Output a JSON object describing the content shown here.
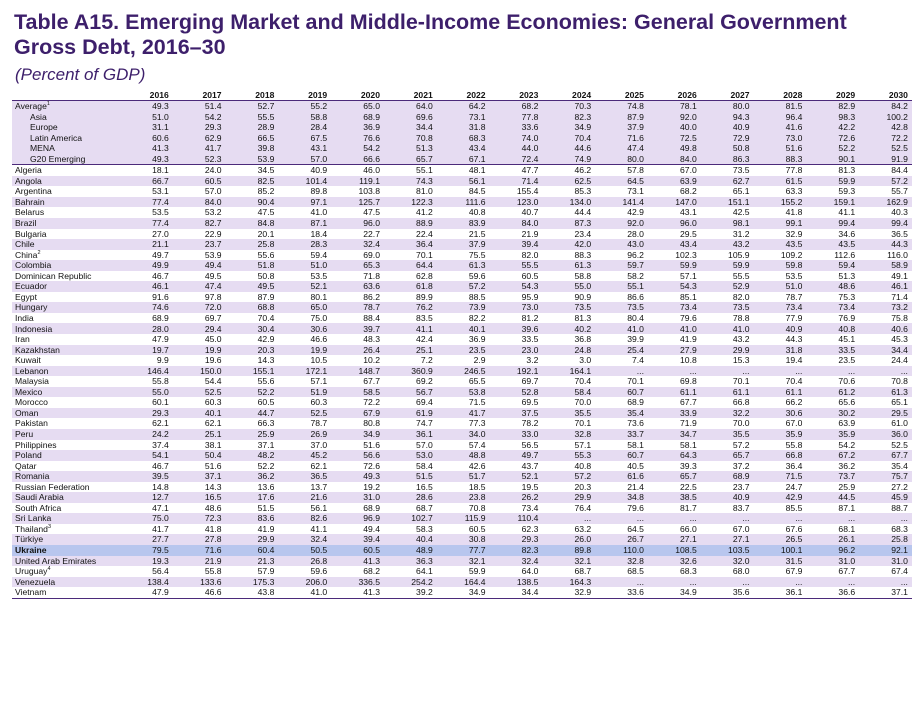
{
  "title": "Table A15. Emerging Market and Middle-Income Economies: General Government Gross Debt, 2016–30",
  "subtitle": "(Percent of GDP)",
  "table": {
    "years": [
      "2016",
      "2017",
      "2018",
      "2019",
      "2020",
      "2021",
      "2022",
      "2023",
      "2024",
      "2025",
      "2026",
      "2027",
      "2028",
      "2029",
      "2030"
    ],
    "aggregates": [
      {
        "name": "Average",
        "note": "1",
        "values": [
          "49.3",
          "51.4",
          "52.7",
          "55.2",
          "65.0",
          "64.0",
          "64.2",
          "68.2",
          "70.3",
          "74.8",
          "78.1",
          "80.0",
          "81.5",
          "82.9",
          "84.2"
        ]
      },
      {
        "name": "Asia",
        "note": "",
        "values": [
          "51.0",
          "54.2",
          "55.5",
          "58.8",
          "68.9",
          "69.6",
          "73.1",
          "77.8",
          "82.3",
          "87.9",
          "92.0",
          "94.3",
          "96.4",
          "98.3",
          "100.2"
        ]
      },
      {
        "name": "Europe",
        "note": "",
        "values": [
          "31.1",
          "29.3",
          "28.9",
          "28.4",
          "36.9",
          "34.4",
          "31.8",
          "33.6",
          "34.9",
          "37.9",
          "40.0",
          "40.9",
          "41.6",
          "42.2",
          "42.8"
        ]
      },
      {
        "name": "Latin America",
        "note": "",
        "values": [
          "60.6",
          "62.9",
          "66.5",
          "67.5",
          "76.6",
          "70.8",
          "68.3",
          "74.0",
          "70.4",
          "71.6",
          "72.5",
          "72.9",
          "73.0",
          "72.6",
          "72.2"
        ]
      },
      {
        "name": "MENA",
        "note": "",
        "values": [
          "41.3",
          "41.7",
          "39.8",
          "43.1",
          "54.2",
          "51.3",
          "43.4",
          "44.0",
          "44.6",
          "47.4",
          "49.8",
          "50.8",
          "51.6",
          "52.2",
          "52.5"
        ]
      },
      {
        "name": "G20 Emerging",
        "note": "",
        "values": [
          "49.3",
          "52.3",
          "53.9",
          "57.0",
          "66.6",
          "65.7",
          "67.1",
          "72.4",
          "74.9",
          "80.0",
          "84.0",
          "86.3",
          "88.3",
          "90.1",
          "91.9"
        ]
      }
    ],
    "countries": [
      {
        "name": "Algeria",
        "note": "",
        "values": [
          "18.1",
          "24.0",
          "34.5",
          "40.9",
          "46.0",
          "55.1",
          "48.1",
          "47.7",
          "46.2",
          "57.8",
          "67.0",
          "73.5",
          "77.8",
          "81.3",
          "84.4"
        ]
      },
      {
        "name": "Angola",
        "note": "",
        "values": [
          "66.7",
          "60.5",
          "82.5",
          "101.4",
          "119.1",
          "74.3",
          "56.1",
          "71.4",
          "62.5",
          "64.5",
          "63.9",
          "62.7",
          "61.5",
          "59.9",
          "57.2"
        ]
      },
      {
        "name": "Argentina",
        "note": "",
        "values": [
          "53.1",
          "57.0",
          "85.2",
          "89.8",
          "103.8",
          "81.0",
          "84.5",
          "155.4",
          "85.3",
          "73.1",
          "68.2",
          "65.1",
          "63.3",
          "59.3",
          "55.7"
        ]
      },
      {
        "name": "Bahrain",
        "note": "",
        "values": [
          "77.4",
          "84.0",
          "90.4",
          "97.1",
          "125.7",
          "122.3",
          "111.6",
          "123.0",
          "134.0",
          "141.4",
          "147.0",
          "151.1",
          "155.2",
          "159.1",
          "162.9"
        ]
      },
      {
        "name": "Belarus",
        "note": "",
        "values": [
          "53.5",
          "53.2",
          "47.5",
          "41.0",
          "47.5",
          "41.2",
          "40.8",
          "40.7",
          "44.4",
          "42.9",
          "43.1",
          "42.5",
          "41.8",
          "41.1",
          "40.3"
        ]
      },
      {
        "name": "Brazil",
        "note": "",
        "values": [
          "77.4",
          "82.7",
          "84.8",
          "87.1",
          "96.0",
          "88.9",
          "83.9",
          "84.0",
          "87.3",
          "92.0",
          "96.0",
          "98.1",
          "99.1",
          "99.4",
          "99.4"
        ]
      },
      {
        "name": "Bulgaria",
        "note": "",
        "values": [
          "27.0",
          "22.9",
          "20.1",
          "18.4",
          "22.7",
          "22.4",
          "21.5",
          "21.9",
          "23.4",
          "28.0",
          "29.5",
          "31.2",
          "32.9",
          "34.6",
          "36.5"
        ]
      },
      {
        "name": "Chile",
        "note": "",
        "values": [
          "21.1",
          "23.7",
          "25.8",
          "28.3",
          "32.4",
          "36.4",
          "37.9",
          "39.4",
          "42.0",
          "43.0",
          "43.4",
          "43.2",
          "43.5",
          "43.5",
          "44.3"
        ]
      },
      {
        "name": "China",
        "note": "2",
        "values": [
          "49.7",
          "53.9",
          "55.6",
          "59.4",
          "69.0",
          "70.1",
          "75.5",
          "82.0",
          "88.3",
          "96.2",
          "102.3",
          "105.9",
          "109.2",
          "112.6",
          "116.0"
        ]
      },
      {
        "name": "Colombia",
        "note": "",
        "values": [
          "49.9",
          "49.4",
          "51.8",
          "51.0",
          "65.3",
          "64.4",
          "61.3",
          "55.5",
          "61.3",
          "59.7",
          "59.9",
          "59.9",
          "59.8",
          "59.4",
          "58.9"
        ]
      },
      {
        "name": "Dominican Republic",
        "note": "",
        "values": [
          "46.7",
          "49.5",
          "50.8",
          "53.5",
          "71.8",
          "62.8",
          "59.6",
          "60.5",
          "58.8",
          "58.2",
          "57.1",
          "55.5",
          "53.5",
          "51.3",
          "49.1"
        ]
      },
      {
        "name": "Ecuador",
        "note": "",
        "values": [
          "46.1",
          "47.4",
          "49.5",
          "52.1",
          "63.6",
          "61.8",
          "57.2",
          "54.3",
          "55.0",
          "55.1",
          "54.3",
          "52.9",
          "51.0",
          "48.6",
          "46.1"
        ]
      },
      {
        "name": "Egypt",
        "note": "",
        "values": [
          "91.6",
          "97.8",
          "87.9",
          "80.1",
          "86.2",
          "89.9",
          "88.5",
          "95.9",
          "90.9",
          "86.6",
          "85.1",
          "82.0",
          "78.7",
          "75.3",
          "71.4"
        ]
      },
      {
        "name": "Hungary",
        "note": "",
        "values": [
          "74.6",
          "72.0",
          "68.8",
          "65.0",
          "78.7",
          "76.2",
          "73.9",
          "73.0",
          "73.5",
          "73.5",
          "73.4",
          "73.5",
          "73.4",
          "73.4",
          "73.2"
        ]
      },
      {
        "name": "India",
        "note": "",
        "values": [
          "68.9",
          "69.7",
          "70.4",
          "75.0",
          "88.4",
          "83.5",
          "82.2",
          "81.2",
          "81.3",
          "80.4",
          "79.6",
          "78.8",
          "77.9",
          "76.9",
          "75.8"
        ]
      },
      {
        "name": "Indonesia",
        "note": "",
        "values": [
          "28.0",
          "29.4",
          "30.4",
          "30.6",
          "39.7",
          "41.1",
          "40.1",
          "39.6",
          "40.2",
          "41.0",
          "41.0",
          "41.0",
          "40.9",
          "40.8",
          "40.6"
        ]
      },
      {
        "name": "Iran",
        "note": "",
        "values": [
          "47.9",
          "45.0",
          "42.9",
          "46.6",
          "48.3",
          "42.4",
          "36.9",
          "33.5",
          "36.8",
          "39.9",
          "41.9",
          "43.2",
          "44.3",
          "45.1",
          "45.3"
        ]
      },
      {
        "name": "Kazakhstan",
        "note": "",
        "values": [
          "19.7",
          "19.9",
          "20.3",
          "19.9",
          "26.4",
          "25.1",
          "23.5",
          "23.0",
          "24.8",
          "25.4",
          "27.9",
          "29.9",
          "31.8",
          "33.5",
          "34.4"
        ]
      },
      {
        "name": "Kuwait",
        "note": "",
        "values": [
          "9.9",
          "19.6",
          "14.3",
          "10.5",
          "10.2",
          "7.2",
          "2.9",
          "3.2",
          "3.0",
          "7.4",
          "10.8",
          "15.3",
          "19.4",
          "23.5",
          "24.4"
        ]
      },
      {
        "name": "Lebanon",
        "note": "",
        "values": [
          "146.4",
          "150.0",
          "155.1",
          "172.1",
          "148.7",
          "360.9",
          "246.5",
          "192.1",
          "164.1",
          "...",
          "...",
          "...",
          "...",
          "...",
          "..."
        ]
      },
      {
        "name": "Malaysia",
        "note": "",
        "values": [
          "55.8",
          "54.4",
          "55.6",
          "57.1",
          "67.7",
          "69.2",
          "65.5",
          "69.7",
          "70.4",
          "70.1",
          "69.8",
          "70.1",
          "70.4",
          "70.6",
          "70.8"
        ]
      },
      {
        "name": "Mexico",
        "note": "",
        "values": [
          "55.0",
          "52.5",
          "52.2",
          "51.9",
          "58.5",
          "56.7",
          "53.8",
          "52.8",
          "58.4",
          "60.7",
          "61.1",
          "61.1",
          "61.1",
          "61.2",
          "61.3"
        ]
      },
      {
        "name": "Morocco",
        "note": "",
        "values": [
          "60.1",
          "60.3",
          "60.5",
          "60.3",
          "72.2",
          "69.4",
          "71.5",
          "69.5",
          "70.0",
          "68.9",
          "67.7",
          "66.8",
          "66.2",
          "65.6",
          "65.1"
        ]
      },
      {
        "name": "Oman",
        "note": "",
        "values": [
          "29.3",
          "40.1",
          "44.7",
          "52.5",
          "67.9",
          "61.9",
          "41.7",
          "37.5",
          "35.5",
          "35.4",
          "33.9",
          "32.2",
          "30.6",
          "30.2",
          "29.5"
        ]
      },
      {
        "name": "Pakistan",
        "note": "",
        "values": [
          "62.1",
          "62.1",
          "66.3",
          "78.7",
          "80.8",
          "74.7",
          "77.3",
          "78.2",
          "70.1",
          "73.6",
          "71.9",
          "70.0",
          "67.0",
          "63.9",
          "61.0"
        ]
      },
      {
        "name": "Peru",
        "note": "",
        "values": [
          "24.2",
          "25.1",
          "25.9",
          "26.9",
          "34.9",
          "36.1",
          "34.0",
          "33.0",
          "32.8",
          "33.7",
          "34.7",
          "35.5",
          "35.9",
          "35.9",
          "36.0"
        ]
      },
      {
        "name": "Philippines",
        "note": "",
        "values": [
          "37.4",
          "38.1",
          "37.1",
          "37.0",
          "51.6",
          "57.0",
          "57.4",
          "56.5",
          "57.1",
          "58.1",
          "58.1",
          "57.2",
          "55.8",
          "54.2",
          "52.5"
        ]
      },
      {
        "name": "Poland",
        "note": "",
        "values": [
          "54.1",
          "50.4",
          "48.2",
          "45.2",
          "56.6",
          "53.0",
          "48.8",
          "49.7",
          "55.3",
          "60.7",
          "64.3",
          "65.7",
          "66.8",
          "67.2",
          "67.7"
        ]
      },
      {
        "name": "Qatar",
        "note": "",
        "values": [
          "46.7",
          "51.6",
          "52.2",
          "62.1",
          "72.6",
          "58.4",
          "42.6",
          "43.7",
          "40.8",
          "40.5",
          "39.3",
          "37.2",
          "36.4",
          "36.2",
          "35.4"
        ]
      },
      {
        "name": "Romania",
        "note": "",
        "values": [
          "39.5",
          "37.1",
          "36.2",
          "36.5",
          "49.3",
          "51.5",
          "51.7",
          "52.1",
          "57.2",
          "61.6",
          "65.7",
          "68.9",
          "71.5",
          "73.7",
          "75.7"
        ]
      },
      {
        "name": "Russian Federation",
        "note": "",
        "values": [
          "14.8",
          "14.3",
          "13.6",
          "13.7",
          "19.2",
          "16.5",
          "18.5",
          "19.5",
          "20.3",
          "21.4",
          "22.5",
          "23.7",
          "24.7",
          "25.9",
          "27.2"
        ]
      },
      {
        "name": "Saudi Arabia",
        "note": "",
        "values": [
          "12.7",
          "16.5",
          "17.6",
          "21.6",
          "31.0",
          "28.6",
          "23.8",
          "26.2",
          "29.9",
          "34.8",
          "38.5",
          "40.9",
          "42.9",
          "44.5",
          "45.9"
        ]
      },
      {
        "name": "South Africa",
        "note": "",
        "values": [
          "47.1",
          "48.6",
          "51.5",
          "56.1",
          "68.9",
          "68.7",
          "70.8",
          "73.4",
          "76.4",
          "79.6",
          "81.7",
          "83.7",
          "85.5",
          "87.1",
          "88.7"
        ]
      },
      {
        "name": "Sri Lanka",
        "note": "",
        "values": [
          "75.0",
          "72.3",
          "83.6",
          "82.6",
          "96.9",
          "102.7",
          "115.9",
          "110.4",
          "...",
          "...",
          "...",
          "...",
          "...",
          "...",
          "..."
        ]
      },
      {
        "name": "Thailand",
        "note": "3",
        "values": [
          "41.7",
          "41.8",
          "41.9",
          "41.1",
          "49.4",
          "58.3",
          "60.5",
          "62.3",
          "63.2",
          "64.5",
          "66.0",
          "67.0",
          "67.6",
          "68.1",
          "68.3"
        ]
      },
      {
        "name": "Türkiye",
        "note": "",
        "values": [
          "27.7",
          "27.8",
          "29.9",
          "32.4",
          "39.4",
          "40.4",
          "30.8",
          "29.3",
          "26.0",
          "26.7",
          "27.1",
          "27.1",
          "26.5",
          "26.1",
          "25.8"
        ]
      },
      {
        "name": "Ukraine",
        "note": "",
        "values": [
          "79.5",
          "71.6",
          "60.4",
          "50.5",
          "60.5",
          "48.9",
          "77.7",
          "82.3",
          "89.8",
          "110.0",
          "108.5",
          "103.5",
          "100.1",
          "96.2",
          "92.1"
        ]
      },
      {
        "name": "United Arab Emirates",
        "note": "",
        "values": [
          "19.3",
          "21.9",
          "21.3",
          "26.8",
          "41.3",
          "36.3",
          "32.1",
          "32.4",
          "32.1",
          "32.8",
          "32.6",
          "32.0",
          "31.5",
          "31.0",
          "31.0"
        ]
      },
      {
        "name": "Uruguay",
        "note": "4",
        "values": [
          "56.4",
          "55.8",
          "57.9",
          "59.6",
          "68.2",
          "64.1",
          "59.9",
          "64.0",
          "68.7",
          "68.5",
          "68.3",
          "68.0",
          "67.9",
          "67.7",
          "67.4"
        ]
      },
      {
        "name": "Venezuela",
        "note": "",
        "values": [
          "138.4",
          "133.6",
          "175.3",
          "206.0",
          "336.5",
          "254.2",
          "164.4",
          "138.5",
          "164.3",
          "...",
          "...",
          "...",
          "...",
          "...",
          "..."
        ]
      },
      {
        "name": "Vietnam",
        "note": "",
        "values": [
          "47.9",
          "46.6",
          "43.8",
          "41.0",
          "41.3",
          "39.2",
          "34.9",
          "34.4",
          "32.9",
          "33.6",
          "34.9",
          "35.6",
          "36.1",
          "36.6",
          "37.1"
        ]
      }
    ]
  }
}
